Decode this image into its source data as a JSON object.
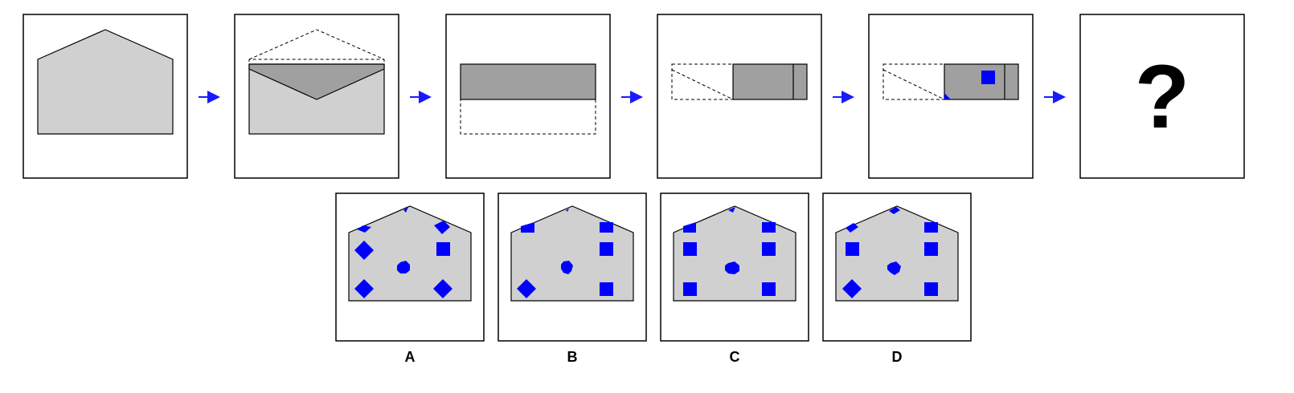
{
  "colors": {
    "paper": "#d0d0d0",
    "folded": "#a0a0a0",
    "hole": "#0000ff",
    "arrow": "#1a1aff",
    "outline": "#000000"
  },
  "sequence": {
    "step_count": 6,
    "final_symbol": "?"
  },
  "options": [
    {
      "label": "A"
    },
    {
      "label": "B"
    },
    {
      "label": "C"
    },
    {
      "label": "D"
    }
  ]
}
